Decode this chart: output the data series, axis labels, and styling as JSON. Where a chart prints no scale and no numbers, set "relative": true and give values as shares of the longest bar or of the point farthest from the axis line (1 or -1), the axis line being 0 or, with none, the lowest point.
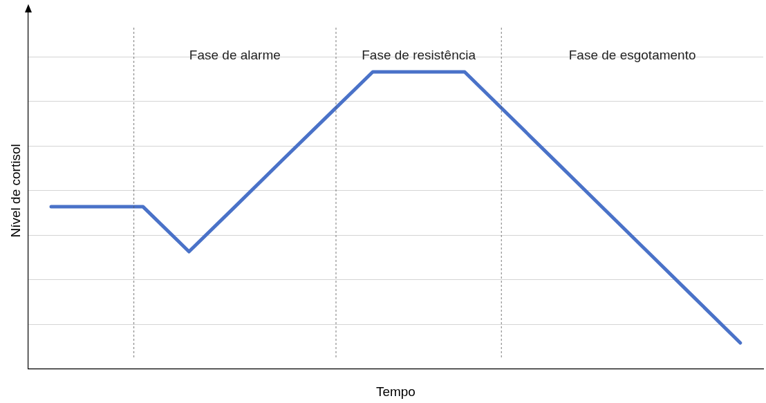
{
  "chart_data": {
    "type": "line",
    "relative": true,
    "xlabel": "Tempo",
    "ylabel": "Nível de cortisol",
    "categories": [
      null,
      null,
      null,
      null,
      null,
      null,
      null,
      null,
      null,
      null,
      null,
      null,
      null,
      null,
      null,
      null
    ],
    "grid": "y",
    "marker": "none",
    "line_style": "solid",
    "legend": false,
    "series": [
      {
        "color": "#4a72c8",
        "values": [
          0.546,
          0.546,
          0.546,
          0.395,
          0.546,
          0.698,
          0.849,
          1,
          1,
          1,
          0.848,
          0.696,
          0.544,
          0.392,
          0.24,
          0.088
        ]
      }
    ],
    "annotations": [
      "Fase de alarme",
      "Fase de resistência",
      "Fase de esgotamento"
    ]
  }
}
